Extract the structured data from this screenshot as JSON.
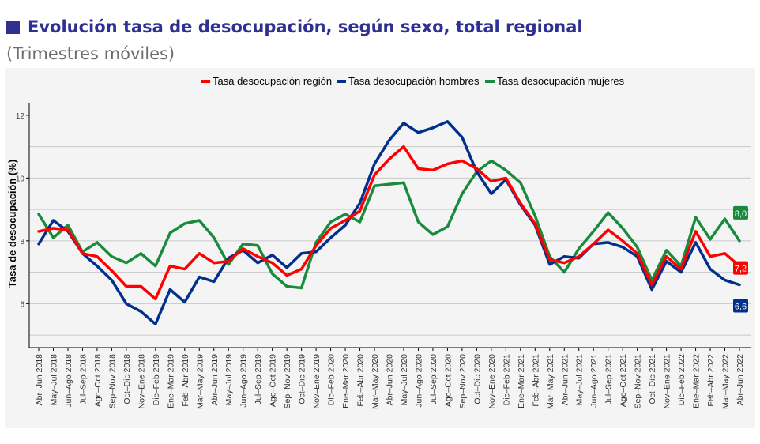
{
  "header": {
    "title": "Evolución tasa de desocupación, según sexo, total regional",
    "subtitle": "(Trimestres móviles)",
    "accent_color": "#2e3192"
  },
  "chart_data": {
    "type": "line",
    "ylabel": "Tasa de desocupación (%)",
    "ylim": [
      4.6,
      12.4
    ],
    "yticks": [
      6,
      8,
      10,
      12
    ],
    "grid": true,
    "legend_position": "top",
    "categories": [
      "Abr–Jun 2018",
      "May–Jul 2018",
      "Jun–Ago 2018",
      "Jul–Sep 2018",
      "Ago–Oct 2018",
      "Sep–Nov 2018",
      "Oct–Dic 2018",
      "Nov–Ene 2018",
      "Dic–Feb 2019",
      "Ene–Mar 2019",
      "Feb–Abr 2019",
      "Mar–May 2019",
      "Abr–Jun 2019",
      "May–Jul 2019",
      "Jun–Ago 2019",
      "Jul–Sep 2019",
      "Ago–Oct 2019",
      "Sep–Nov 2019",
      "Oct–Dic 2019",
      "Nov–Ene 2019",
      "Dic–Feb 2020",
      "Ene–Mar 2020",
      "Feb–Abr 2020",
      "Mar–May 2020",
      "Abr–Jun 2020",
      "May–Jul 2020",
      "Jun–Ago 2020",
      "Jul–Sep 2020",
      "Ago–Oct 2020",
      "Sep–Nov 2020",
      "Oct–Dic 2020",
      "Nov–Ene 2020",
      "Dic–Feb 2021",
      "Ene–Mar 2021",
      "Feb–Abr 2021",
      "Mar–May 2021",
      "Abr–Jun 2021",
      "May–Jul 2021",
      "Jun–Ago 2021",
      "Jul–Sep 2021",
      "Ago–Oct 2021",
      "Sep–Nov 2021",
      "Oct–Dic 2021",
      "Nov–Ene 2021",
      "Dic–Feb 2022",
      "Ene–Mar 2022",
      "Feb–Abr 2022",
      "Mar–May 2022",
      "Abr–Jun 2022"
    ],
    "series": [
      {
        "name": "Tasa desocupación región",
        "color": "#ff0000",
        "end_label": "7,2",
        "values": [
          8.3,
          8.4,
          8.35,
          7.6,
          7.5,
          7.05,
          6.55,
          6.55,
          6.15,
          7.2,
          7.1,
          7.6,
          7.3,
          7.35,
          7.75,
          7.5,
          7.3,
          6.9,
          7.1,
          7.85,
          8.4,
          8.65,
          8.95,
          10.1,
          10.6,
          11.0,
          10.3,
          10.25,
          10.45,
          10.55,
          10.3,
          9.9,
          10.0,
          9.2,
          8.55,
          7.4,
          7.3,
          7.5,
          7.9,
          8.35,
          8.0,
          7.6,
          6.6,
          7.5,
          7.1,
          8.3,
          7.5,
          7.6,
          7.2
        ]
      },
      {
        "name": "Tasa desocupación hombres",
        "color": "#002f8e",
        "end_label": "6,6",
        "values": [
          7.9,
          8.65,
          8.3,
          7.6,
          7.2,
          6.75,
          6.0,
          5.75,
          5.35,
          6.45,
          6.05,
          6.85,
          6.7,
          7.45,
          7.7,
          7.3,
          7.55,
          7.15,
          7.6,
          7.65,
          8.1,
          8.5,
          9.2,
          10.45,
          11.2,
          11.75,
          11.45,
          11.6,
          11.8,
          11.3,
          10.2,
          9.5,
          9.95,
          9.15,
          8.5,
          7.25,
          7.5,
          7.45,
          7.9,
          7.95,
          7.8,
          7.5,
          6.45,
          7.35,
          7.0,
          7.95,
          7.1,
          6.75,
          6.6
        ]
      },
      {
        "name": "Tasa desocupación mujeres",
        "color": "#1a8a3c",
        "end_label": "8,0",
        "values": [
          8.85,
          8.1,
          8.5,
          7.65,
          7.95,
          7.5,
          7.3,
          7.6,
          7.2,
          8.25,
          8.55,
          8.65,
          8.1,
          7.25,
          7.9,
          7.85,
          6.95,
          6.55,
          6.5,
          7.95,
          8.6,
          8.85,
          8.6,
          9.75,
          9.8,
          9.85,
          8.6,
          8.2,
          8.45,
          9.5,
          10.2,
          10.55,
          10.25,
          9.85,
          8.8,
          7.5,
          7.0,
          7.75,
          8.3,
          8.9,
          8.4,
          7.8,
          6.75,
          7.7,
          7.2,
          8.75,
          8.05,
          8.7,
          8.0
        ]
      }
    ]
  }
}
